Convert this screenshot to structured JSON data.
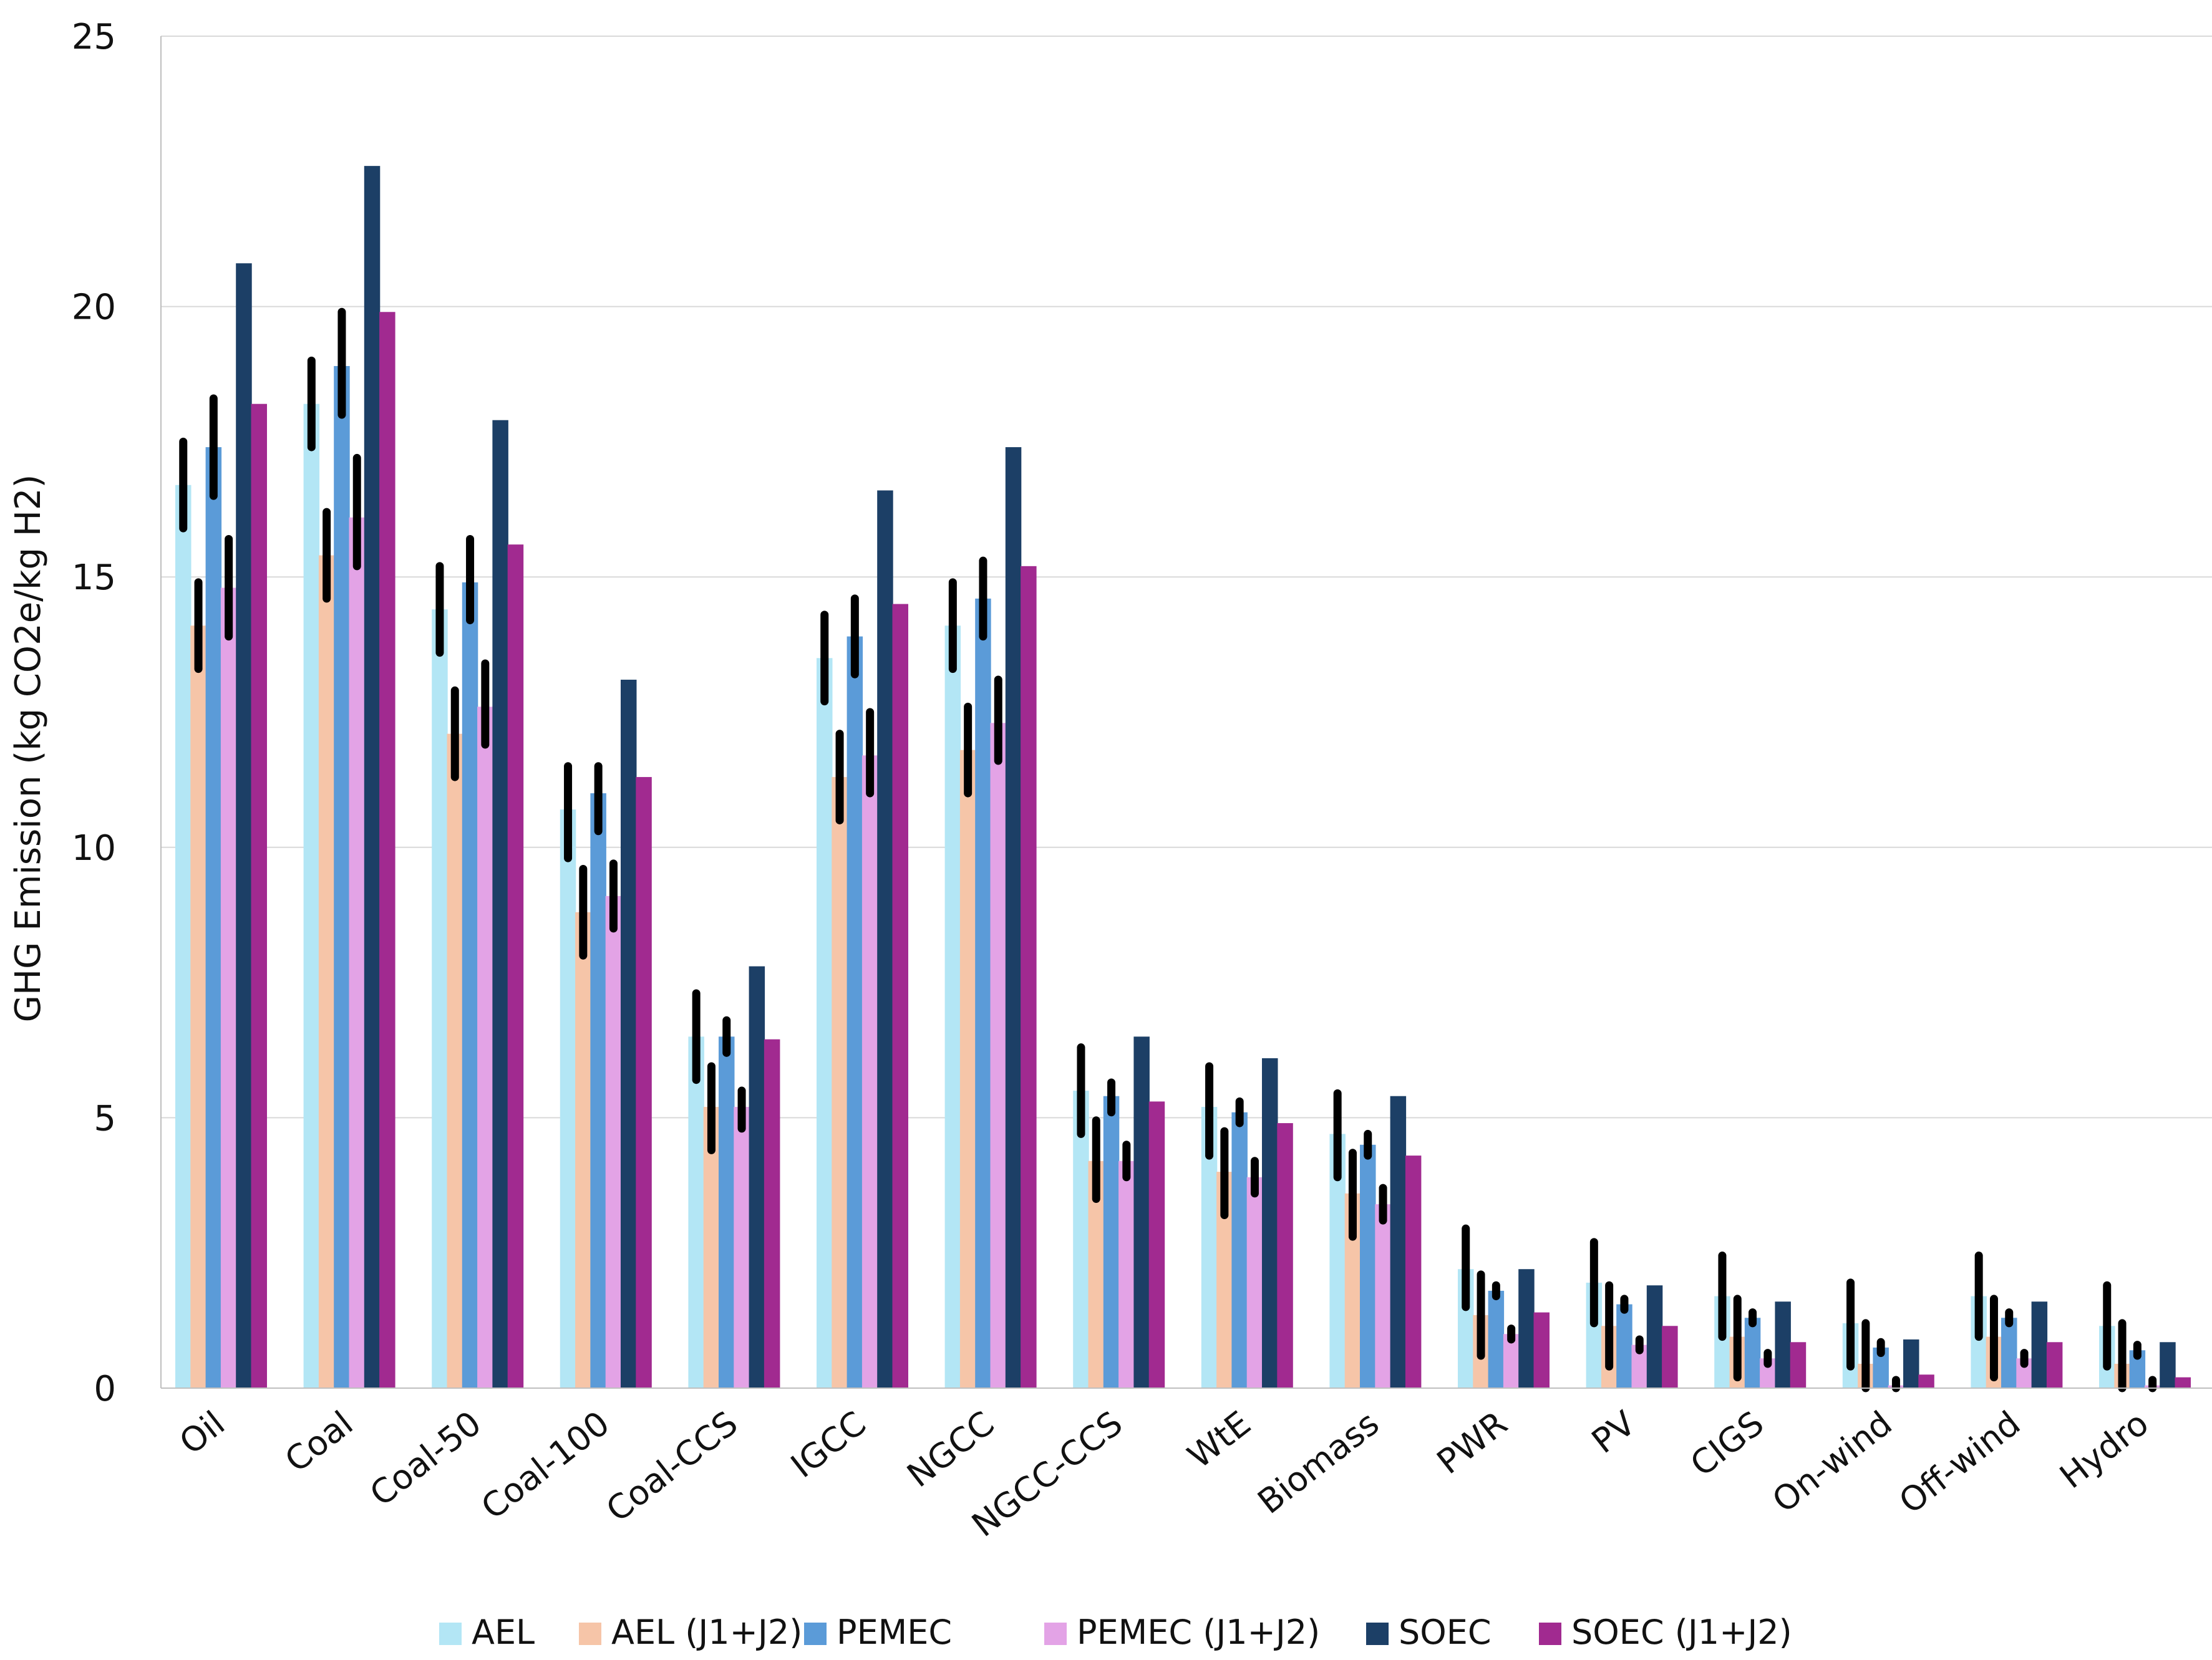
{
  "chart_data": {
    "type": "bar",
    "title": "",
    "xlabel": "",
    "ylabel": "GHG  Emission (kg CO2e/kg H2)",
    "ylim": [
      0,
      25
    ],
    "yticks": [
      0,
      5,
      10,
      15,
      20,
      25
    ],
    "grid": true,
    "legend_position": "bottom",
    "categories": [
      "Oil",
      "Coal",
      "Coal-50",
      "Coal-100",
      "Coal-CCS",
      "IGCC",
      "NGCC",
      "NGCC-CCS",
      "WtE",
      "Biomass",
      "PWR",
      "PV",
      "CIGS",
      "On-wind",
      "Off-wind",
      "Hydro"
    ],
    "series": [
      {
        "name": "AEL",
        "color": "#b3e6f5",
        "values": [
          16.7,
          18.2,
          14.4,
          10.7,
          6.5,
          13.5,
          14.1,
          5.5,
          5.2,
          4.7,
          2.2,
          1.95,
          1.7,
          1.2,
          1.7,
          1.15
        ],
        "error_low": [
          15.9,
          17.4,
          13.6,
          9.8,
          5.7,
          12.7,
          13.3,
          4.7,
          4.3,
          3.9,
          1.5,
          1.2,
          0.95,
          0.4,
          0.95,
          0.4
        ],
        "error_high": [
          17.5,
          19.0,
          15.2,
          11.5,
          7.3,
          14.3,
          14.9,
          6.3,
          5.95,
          5.45,
          2.95,
          2.7,
          2.45,
          1.95,
          2.45,
          1.9
        ]
      },
      {
        "name": "AEL (J1+J2)",
        "color": "#f6c5a8",
        "values": [
          14.1,
          15.4,
          12.1,
          8.8,
          5.2,
          11.3,
          11.8,
          4.2,
          4.0,
          3.6,
          1.35,
          1.15,
          0.95,
          0.45,
          0.95,
          0.45
        ],
        "error_low": [
          13.3,
          14.6,
          11.3,
          8.0,
          4.4,
          10.5,
          11.0,
          3.5,
          3.2,
          2.8,
          0.6,
          0.4,
          0.2,
          0.0,
          0.2,
          0.0
        ],
        "error_high": [
          14.9,
          16.2,
          12.9,
          9.6,
          5.95,
          12.1,
          12.6,
          4.95,
          4.75,
          4.35,
          2.1,
          1.9,
          1.65,
          1.2,
          1.65,
          1.2
        ]
      },
      {
        "name": "PEMEC",
        "color": "#5b9bd8",
        "values": [
          17.4,
          18.9,
          14.9,
          11.0,
          6.5,
          13.9,
          14.6,
          5.4,
          5.1,
          4.5,
          1.8,
          1.55,
          1.3,
          0.75,
          1.3,
          0.7
        ],
        "error_low": [
          16.5,
          18.0,
          14.2,
          10.3,
          6.2,
          13.2,
          13.9,
          5.1,
          4.9,
          4.3,
          1.7,
          1.45,
          1.2,
          0.65,
          1.2,
          0.6
        ],
        "error_high": [
          18.3,
          19.9,
          15.7,
          11.5,
          6.8,
          14.6,
          15.3,
          5.65,
          5.3,
          4.7,
          1.9,
          1.65,
          1.4,
          0.85,
          1.4,
          0.8
        ]
      },
      {
        "name": "PEMEC (J1+J2)",
        "color": "#e3a3e6",
        "values": [
          14.8,
          16.1,
          12.6,
          9.1,
          5.2,
          11.7,
          12.3,
          4.2,
          3.9,
          3.4,
          1.0,
          0.8,
          0.55,
          0.05,
          0.55,
          0.05
        ],
        "error_low": [
          13.9,
          15.2,
          11.9,
          8.5,
          4.8,
          11.0,
          11.6,
          3.9,
          3.6,
          3.1,
          0.9,
          0.7,
          0.45,
          0.0,
          0.45,
          0.0
        ],
        "error_high": [
          15.7,
          17.2,
          13.4,
          9.7,
          5.5,
          12.5,
          13.1,
          4.5,
          4.2,
          3.7,
          1.1,
          0.9,
          0.65,
          0.15,
          0.65,
          0.15
        ]
      },
      {
        "name": "SOEC",
        "color": "#1c3f66",
        "values": [
          20.8,
          22.6,
          17.9,
          13.1,
          7.8,
          16.6,
          17.4,
          6.5,
          6.1,
          5.4,
          2.2,
          1.9,
          1.6,
          0.9,
          1.6,
          0.85
        ]
      },
      {
        "name": "SOEC (J1+J2)",
        "color": "#a12a90",
        "values": [
          18.2,
          19.9,
          15.6,
          11.3,
          6.45,
          14.5,
          15.2,
          5.3,
          4.9,
          4.3,
          1.4,
          1.15,
          0.85,
          0.25,
          0.85,
          0.2
        ]
      }
    ]
  }
}
